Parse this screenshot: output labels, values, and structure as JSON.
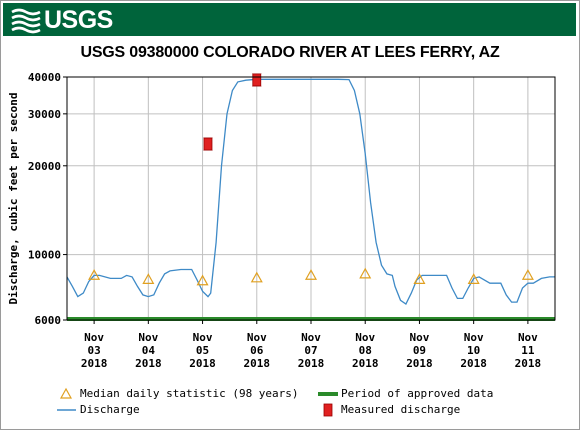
{
  "header": {
    "logo_text": "USGS"
  },
  "chart_data": {
    "type": "line",
    "title": "USGS 09380000 COLORADO RIVER AT LEES FERRY, AZ",
    "ylabel": "Discharge, cubic feet per second",
    "xlabel": "",
    "yscale": "log",
    "ylim": [
      6000,
      40000
    ],
    "y_ticks": [
      6000,
      10000,
      20000,
      30000,
      40000
    ],
    "x_ticks": [
      {
        "day": 3,
        "lines": [
          "Nov",
          "03",
          "2018"
        ]
      },
      {
        "day": 4,
        "lines": [
          "Nov",
          "04",
          "2018"
        ]
      },
      {
        "day": 5,
        "lines": [
          "Nov",
          "05",
          "2018"
        ]
      },
      {
        "day": 6,
        "lines": [
          "Nov",
          "06",
          "2018"
        ]
      },
      {
        "day": 7,
        "lines": [
          "Nov",
          "07",
          "2018"
        ]
      },
      {
        "day": 8,
        "lines": [
          "Nov",
          "08",
          "2018"
        ]
      },
      {
        "day": 9,
        "lines": [
          "Nov",
          "09",
          "2018"
        ]
      },
      {
        "day": 10,
        "lines": [
          "Nov",
          "10",
          "2018"
        ]
      },
      {
        "day": 11,
        "lines": [
          "Nov",
          "11",
          "2018"
        ]
      }
    ],
    "xlim": [
      2.5,
      11.5
    ],
    "grid": true,
    "legend_position": "bottom",
    "colors": {
      "discharge": "#3e8ac7",
      "median": "#e0a020",
      "approved": "#2a8a2a",
      "measured": "#e02020",
      "banner": "#00643b",
      "grid": "#c0c0c0"
    },
    "series": [
      {
        "key": "discharge",
        "name": "Discharge",
        "points": [
          [
            2.5,
            8400
          ],
          [
            2.6,
            7800
          ],
          [
            2.7,
            7200
          ],
          [
            2.8,
            7400
          ],
          [
            2.9,
            8100
          ],
          [
            3.0,
            8500
          ],
          [
            3.1,
            8500
          ],
          [
            3.3,
            8300
          ],
          [
            3.5,
            8300
          ],
          [
            3.6,
            8500
          ],
          [
            3.7,
            8400
          ],
          [
            3.8,
            7800
          ],
          [
            3.9,
            7300
          ],
          [
            4.0,
            7200
          ],
          [
            4.1,
            7300
          ],
          [
            4.2,
            8000
          ],
          [
            4.3,
            8600
          ],
          [
            4.4,
            8800
          ],
          [
            4.6,
            8900
          ],
          [
            4.8,
            8900
          ],
          [
            4.9,
            8200
          ],
          [
            5.0,
            7500
          ],
          [
            5.1,
            7200
          ],
          [
            5.15,
            7400
          ],
          [
            5.25,
            11000
          ],
          [
            5.35,
            20000
          ],
          [
            5.45,
            30000
          ],
          [
            5.55,
            36000
          ],
          [
            5.65,
            38500
          ],
          [
            5.8,
            39000
          ],
          [
            6.0,
            39300
          ],
          [
            6.5,
            39300
          ],
          [
            7.0,
            39300
          ],
          [
            7.5,
            39300
          ],
          [
            7.7,
            39200
          ],
          [
            7.8,
            36000
          ],
          [
            7.9,
            30000
          ],
          [
            8.0,
            22000
          ],
          [
            8.1,
            15000
          ],
          [
            8.2,
            11000
          ],
          [
            8.3,
            9200
          ],
          [
            8.4,
            8600
          ],
          [
            8.5,
            8500
          ],
          [
            8.55,
            7800
          ],
          [
            8.65,
            7000
          ],
          [
            8.75,
            6800
          ],
          [
            8.85,
            7400
          ],
          [
            8.95,
            8200
          ],
          [
            9.05,
            8500
          ],
          [
            9.3,
            8500
          ],
          [
            9.5,
            8500
          ],
          [
            9.6,
            7700
          ],
          [
            9.7,
            7100
          ],
          [
            9.8,
            7100
          ],
          [
            9.9,
            7700
          ],
          [
            10.0,
            8300
          ],
          [
            10.1,
            8400
          ],
          [
            10.3,
            8000
          ],
          [
            10.5,
            8000
          ],
          [
            10.6,
            7300
          ],
          [
            10.7,
            6900
          ],
          [
            10.8,
            6900
          ],
          [
            10.9,
            7700
          ],
          [
            11.0,
            8000
          ],
          [
            11.1,
            8000
          ],
          [
            11.25,
            8300
          ],
          [
            11.4,
            8400
          ],
          [
            11.5,
            8400
          ]
        ]
      }
    ],
    "median_daily": {
      "name": "Median daily statistic (98 years)",
      "points": [
        [
          3,
          8510
        ],
        [
          4,
          8240
        ],
        [
          5,
          8150
        ],
        [
          6,
          8340
        ],
        [
          7,
          8510
        ],
        [
          8,
          8600
        ],
        [
          9,
          8240
        ],
        [
          10,
          8240
        ],
        [
          11,
          8510
        ]
      ]
    },
    "measured": {
      "name": "Measured discharge",
      "points": [
        [
          5.1,
          23700
        ],
        [
          6.0,
          39100
        ]
      ]
    },
    "approved": {
      "name": "Period of approved data",
      "range": [
        2.5,
        11.5
      ]
    }
  }
}
